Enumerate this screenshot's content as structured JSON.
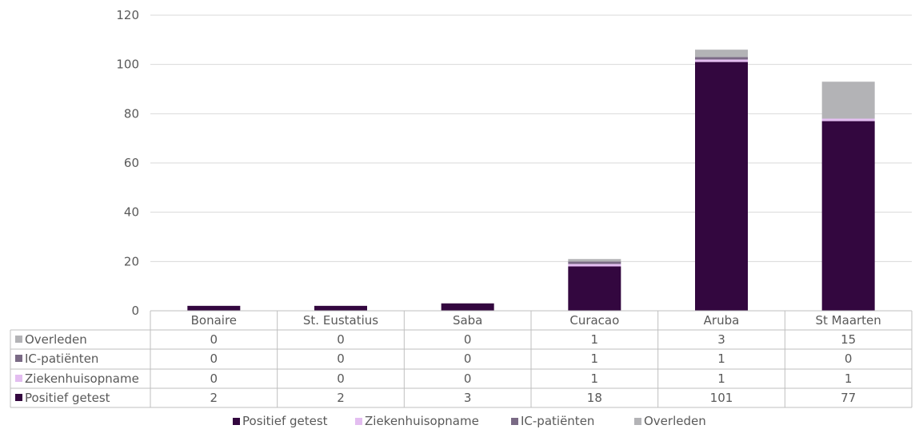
{
  "chart_data": {
    "type": "bar",
    "stacked": true,
    "categories": [
      "Bonaire",
      "St. Eustatius",
      "Saba",
      "Curacao",
      "Aruba",
      "St Maarten"
    ],
    "series": [
      {
        "name": "Positief getest",
        "values": [
          2,
          2,
          3,
          18,
          101,
          77
        ],
        "color": "#33073f"
      },
      {
        "name": "Ziekenhuisopname",
        "values": [
          0,
          0,
          0,
          1,
          1,
          1
        ],
        "color": "#e3bdf0"
      },
      {
        "name": "IC-patiënten",
        "values": [
          0,
          0,
          0,
          1,
          1,
          0
        ],
        "color": "#7a6a85"
      },
      {
        "name": "Overleden",
        "values": [
          0,
          0,
          0,
          1,
          3,
          15
        ],
        "color": "#b3b3b6"
      }
    ],
    "table_row_order": [
      "Overleden",
      "IC-patiënten",
      "Ziekenhuisopname",
      "Positief getest"
    ],
    "ylim": [
      0,
      120
    ],
    "yticks": [
      0,
      20,
      40,
      60,
      80,
      100,
      120
    ],
    "grid": true,
    "legend": "bottom",
    "data_table": true
  }
}
